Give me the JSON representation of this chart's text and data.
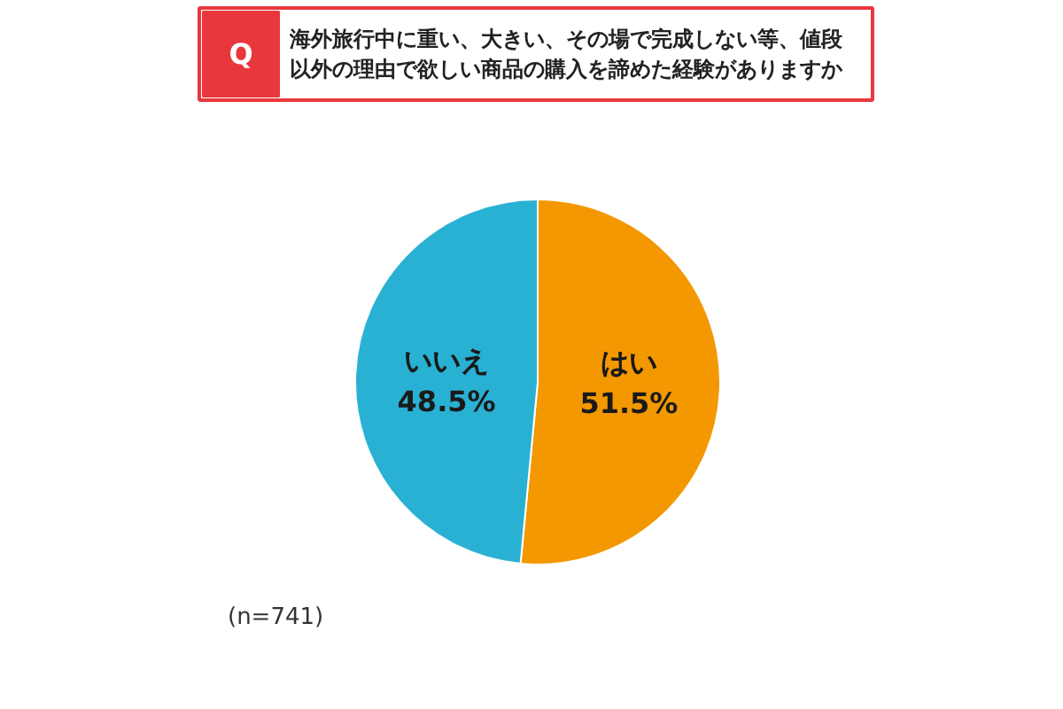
{
  "chart_data": {
    "type": "pie",
    "title": "海外旅行中に重い、大きい、その場で完成しない等、値段以外の理由で欲しい商品の購入を諦めた経験がありますか",
    "categories": [
      "はい",
      "いいえ"
    ],
    "values": [
      51.5,
      48.5
    ],
    "colors": [
      "#f39800",
      "#29b1d4"
    ],
    "value_labels": [
      "51.5%",
      "48.5%"
    ],
    "annotations": [
      "Q",
      "(n=741)"
    ]
  }
}
